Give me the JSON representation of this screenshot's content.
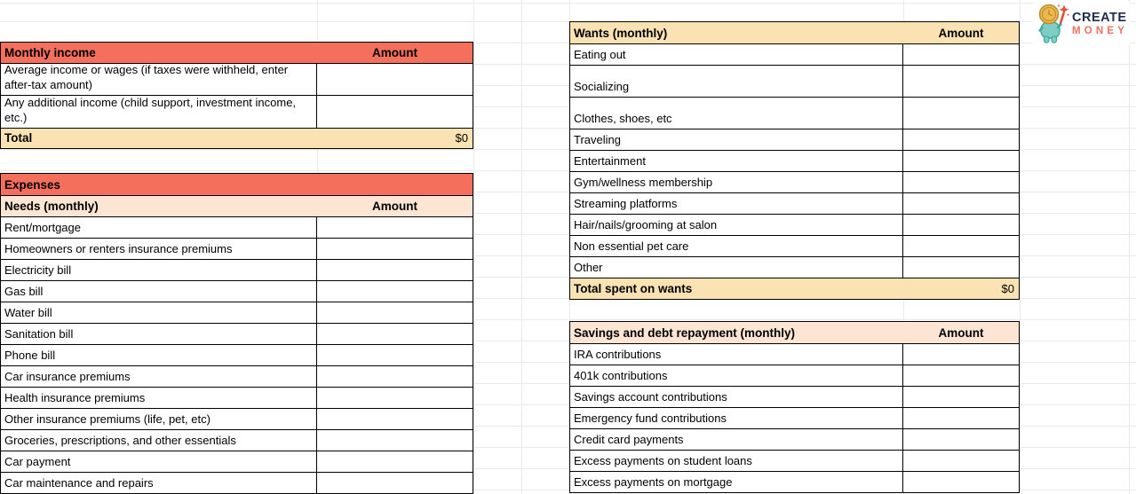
{
  "colors": {
    "salmon": "#f4705d",
    "amber": "#fbe2b2",
    "peach": "#fce5d2",
    "gridline": "#e7e9ec",
    "logo_navy": "#1e2d4f",
    "logo_coral": "#f2705c"
  },
  "logo": {
    "line1": "CREATE",
    "line2": "MONEY",
    "icon": "coin-headed mascot with magic wand"
  },
  "income_table": {
    "title": "Monthly income",
    "amount_header": "Amount",
    "rows": [
      {
        "label": "Average income or wages (if taxes were withheld, enter after-tax amount)",
        "value": ""
      },
      {
        "label": "Any additional income (child support, investment income, etc.)",
        "value": ""
      }
    ],
    "total_label": "Total",
    "total_value": "$0"
  },
  "expenses_table": {
    "title": "Expenses",
    "subtitle": "Needs (monthly)",
    "amount_header": "Amount",
    "rows": [
      "Rent/mortgage",
      "Homeowners or renters insurance premiums",
      "Electricity bill",
      "Gas bill",
      "Water bill",
      "Sanitation bill",
      "Phone bill",
      "Car insurance premiums",
      "Health insurance premiums",
      "Other insurance premiums (life, pet, etc)",
      "Groceries, prescriptions, and other essentials",
      "Car payment",
      "Car maintenance and repairs"
    ]
  },
  "wants_table": {
    "title": "Wants (monthly)",
    "amount_header": "Amount",
    "rows": [
      "Eating out",
      "Socializing",
      "Clothes, shoes, etc",
      "Traveling",
      "Entertainment",
      "Gym/wellness membership",
      "Streaming platforms",
      "Hair/nails/grooming at salon",
      "Non essential pet care",
      "Other"
    ],
    "total_label": "Total spent on wants",
    "total_value": "$0"
  },
  "savings_table": {
    "title": "Savings and debt repayment (monthly)",
    "amount_header": "Amount",
    "rows": [
      "IRA contributions",
      "401k contributions",
      "Savings account contributions",
      "Emergency fund contributions",
      "Credit card payments",
      "Excess payments on student loans",
      "Excess payments on mortgage"
    ]
  }
}
